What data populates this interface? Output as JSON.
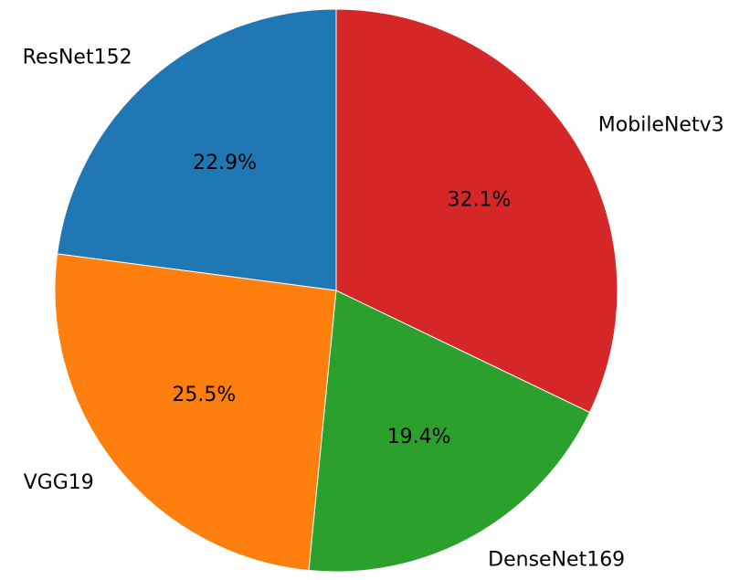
{
  "chart_data": {
    "type": "pie",
    "categories": [
      "ResNet152",
      "VGG19",
      "DenseNet169",
      "MobileNetv3"
    ],
    "values": [
      22.9,
      25.5,
      19.4,
      32.1
    ],
    "value_labels": [
      "22.9%",
      "25.5%",
      "19.4%",
      "32.1%"
    ],
    "colors": [
      "#1f77b4",
      "#ff7f0e",
      "#2ca02c",
      "#d62728"
    ]
  }
}
